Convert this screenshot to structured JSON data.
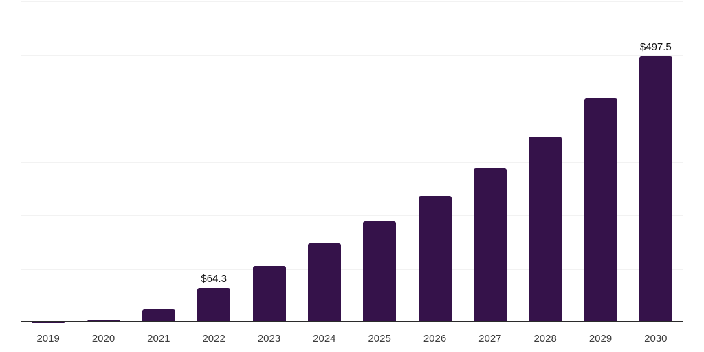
{
  "chart": {
    "background_color": "#ffffff",
    "bar_color": "#35124a",
    "axis_color": "#2b2b2b",
    "grid_color": "#f2f2f2",
    "value_label_color": "#101010",
    "tick_label_color": "#3c3c3c"
  },
  "chart_data": {
    "type": "bar",
    "title": "",
    "xlabel": "",
    "ylabel": "",
    "categories": [
      "2019",
      "2020",
      "2021",
      "2022",
      "2023",
      "2024",
      "2025",
      "2026",
      "2027",
      "2028",
      "2029",
      "2030"
    ],
    "values": [
      0.5,
      4.8,
      24.3,
      64.3,
      106,
      147.5,
      189,
      236.5,
      287.5,
      346.5,
      419,
      497.5
    ],
    "bar_labels": [
      "",
      "",
      "",
      "$64.3",
      "",
      "",
      "",
      "",
      "",
      "",
      "",
      "$497.5"
    ],
    "ylim": [
      0,
      600
    ],
    "grid_step": 100,
    "grid": true,
    "legend": false,
    "y_axis_ticks_visible": false
  }
}
